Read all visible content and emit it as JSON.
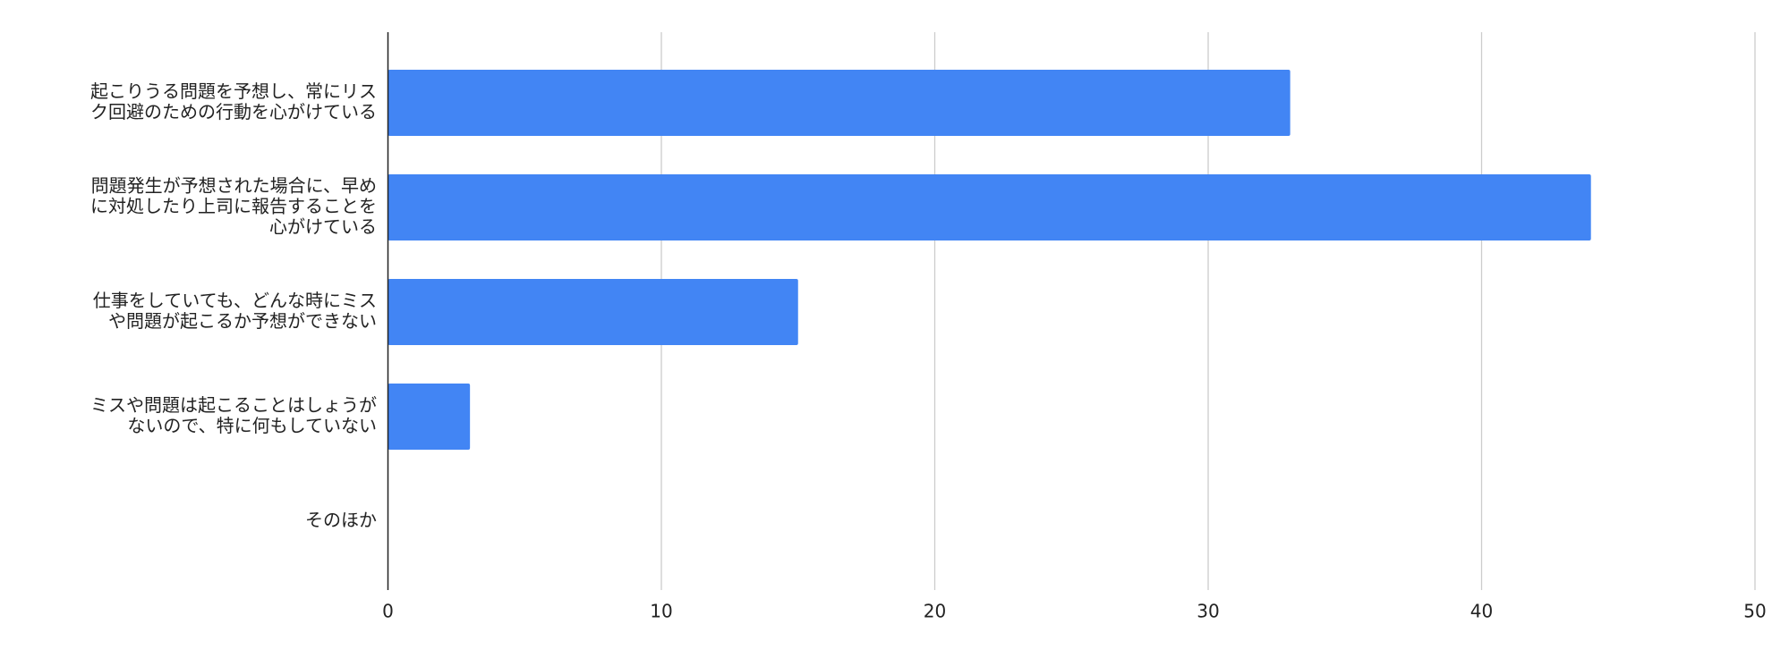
{
  "chart_data": {
    "type": "bar",
    "orientation": "horizontal",
    "categories": [
      [
        "起こりうる問題を予想し、常にリス",
        "ク回避のための行動を心がけている"
      ],
      [
        "問題発生が予想された場合に、早め",
        "に対処したり上司に報告することを",
        "心がけている"
      ],
      [
        "仕事をしていても、どんな時にミス",
        "や問題が起こるか予想ができない"
      ],
      [
        "ミスや問題は起こることはしょうが",
        "ないので、特に何もしていない"
      ],
      [
        "そのほか"
      ]
    ],
    "values": [
      33,
      44,
      15,
      3,
      0
    ],
    "color": "#4285f4",
    "xlim": [
      0,
      50
    ],
    "xticks": [
      0,
      10,
      20,
      30,
      40,
      50
    ],
    "grid": true
  }
}
